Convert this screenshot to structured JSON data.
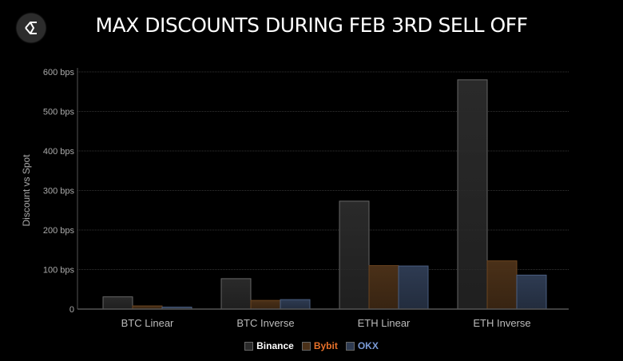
{
  "title": "MAX DISCOUNTS DURING FEB 3RD SELL OFF",
  "chart_data": {
    "type": "bar",
    "title": "MAX DISCOUNTS DURING FEB 3RD SELL OFF",
    "xlabel": "",
    "ylabel": "Discount vs Spot",
    "ylim": [
      0,
      600
    ],
    "yticks": [
      "0",
      "100 bps",
      "200 bps",
      "300 bps",
      "400 bps",
      "500 bps",
      "600 bps"
    ],
    "ytick_values": [
      0,
      100,
      200,
      300,
      400,
      500,
      600
    ],
    "categories": [
      "BTC Linear",
      "BTC Inverse",
      "ETH Linear",
      "ETH Inverse"
    ],
    "series": [
      {
        "name": "Binance",
        "color": "#2a2a2a",
        "legend_color": "#ffffff",
        "values": [
          31,
          77,
          273,
          580
        ]
      },
      {
        "name": "Bybit",
        "color": "#4a3018",
        "legend_color": "#e8712a",
        "values": [
          8,
          22,
          110,
          122
        ]
      },
      {
        "name": "OKX",
        "color": "#2e3b52",
        "legend_color": "#7a9ad6",
        "values": [
          5,
          24,
          109,
          86
        ]
      }
    ],
    "grid": true,
    "legend": "bottom"
  }
}
